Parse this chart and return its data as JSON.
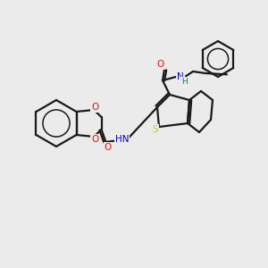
{
  "background_color": "#ebebeb",
  "bond_color": "#1a1a1a",
  "atom_colors": {
    "O": "#ff0000",
    "N": "#0000cd",
    "S": "#cccc00",
    "H": "#008080",
    "C": "#1a1a1a"
  },
  "figsize": [
    3.0,
    3.0
  ],
  "dpi": 100,
  "xlim": [
    0,
    300
  ],
  "ylim": [
    0,
    300
  ]
}
